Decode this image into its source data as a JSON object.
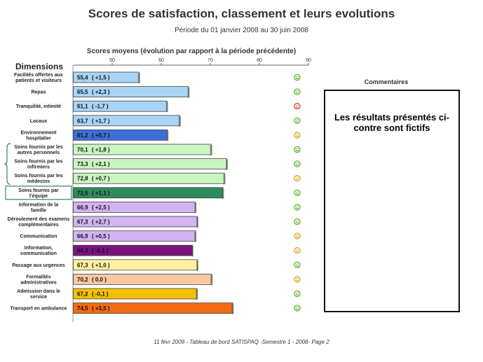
{
  "title": "Scores de satisfaction, classement et leurs evolutions",
  "subtitle": "Période du 01 janvier 2008 au 30 juin 2008",
  "axis_caption": "Scores moyens (évolution par rapport à la période précédente)",
  "dimensions_header": "Dimensions",
  "comments_title": "Commentaires",
  "comments_text": "Les résultats présentés ci-contre sont fictifs",
  "footer": "11 févr 2009 - Tableau de bord SATISPAQ -Semestre 1 - 2008- Page 2",
  "chart_data": {
    "type": "bar",
    "orientation": "horizontal",
    "xlim": [
      42,
      90
    ],
    "ticks": [
      50,
      60,
      70,
      80,
      90
    ],
    "categories": [
      "Facilités offertes aux patients et visiteurs",
      "Repas",
      "Tranquilité, intimité",
      "Locaux",
      "Environnement hospitalier",
      "Soins fournis par les autres personnels",
      "Soins fournis par les infirmiers",
      "Soins fournis par les médecins",
      "Soins fournis par l'équipe",
      "Information de la famille",
      "Déroulement des examens complémentaires",
      "Communication",
      "Information, communication",
      "Passage aux urgences",
      "Formalités administratives",
      "Admission dans le service",
      "Transport en ambulance"
    ],
    "values": [
      55.4,
      65.5,
      61.1,
      63.7,
      61.2,
      70.1,
      73.3,
      72.8,
      72.5,
      66.9,
      67.3,
      66.9,
      66.3,
      67.3,
      70.2,
      67.2,
      74.5
    ],
    "value_labels": [
      "55,4",
      "65,5",
      "61,1",
      "63,7",
      "61,2",
      "70,1",
      "73,3",
      "72,8",
      "72,5",
      "66,9",
      "67,3",
      "66,9",
      "66,3",
      "67,3",
      "70,2",
      "67,2",
      "74,5"
    ],
    "evolution_labels": [
      "( +1,5 )",
      "( +2,3 )",
      "( -1,7 )",
      "( +1,7 )",
      "( +0,7 )",
      "( +1,8 )",
      "( +2,1 )",
      "( +0,7 )",
      "( +1,1 )",
      "( +2,5 )",
      "( +2,7 )",
      "( +0,5 )",
      "( -0,1 )",
      "( +1,0 )",
      "( 0,0 )",
      "( -0,1 )",
      "( +3,5 )"
    ],
    "bar_colors": [
      "#a9d4f5",
      "#a9d4f5",
      "#a9d4f5",
      "#a9d4f5",
      "#3a6fd6",
      "#c8f5c0",
      "#c8f5c0",
      "#c8f5c0",
      "#2e8b5a",
      "#d3b3f2",
      "#d3b3f2",
      "#d3b3f2",
      "#7a1380",
      "#fff0a0",
      "#f7c9a2",
      "#f5c000",
      "#f26b12"
    ],
    "smileys": [
      "happy",
      "happy",
      "sad",
      "happy",
      "neutral",
      "happy",
      "happy",
      "neutral",
      "happy",
      "happy",
      "happy",
      "neutral",
      "neutral",
      "happy",
      "neutral",
      "happy",
      "happy"
    ],
    "smiley_colors": {
      "happy": "#3aa83a",
      "neutral": "#d9902a",
      "sad": "#d02020"
    },
    "group_bracket_categories": [
      "Soins fournis par les autres personnels",
      "Soins fournis par les infirmiers",
      "Soins fournis par les médecins"
    ],
    "boxed_category": "Soins fournis par l'équipe"
  }
}
